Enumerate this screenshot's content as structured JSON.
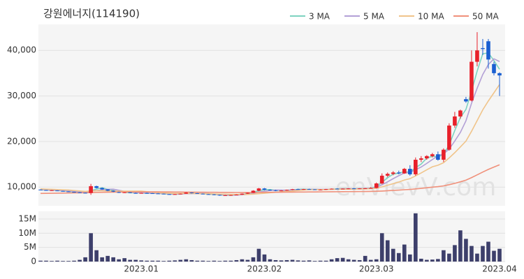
{
  "chart_data": {
    "type": "candlestick",
    "title": "강원에너지(114190)",
    "watermark": "enVievV.com",
    "legend": "top-right",
    "grid": true,
    "up_color": "#e8202a",
    "down_color": "#1a5fd1",
    "categories": [
      null,
      null,
      null,
      null,
      null,
      null,
      null,
      null,
      null,
      null,
      null,
      null,
      null,
      null,
      null,
      null,
      null,
      null,
      "2023.01",
      null,
      null,
      null,
      null,
      null,
      null,
      null,
      null,
      null,
      null,
      null,
      null,
      null,
      null,
      null,
      null,
      null,
      null,
      null,
      null,
      null,
      "2023.02",
      null,
      null,
      null,
      null,
      null,
      null,
      null,
      null,
      null,
      null,
      null,
      null,
      null,
      null,
      null,
      null,
      null,
      null,
      null,
      "2023.03",
      null,
      null,
      null,
      null,
      null,
      null,
      null,
      null,
      null,
      null,
      null,
      null,
      null,
      null,
      null,
      null,
      null,
      null,
      null,
      null,
      null,
      "2023.04"
    ],
    "open": [
      9450,
      9350,
      9250,
      9250,
      9150,
      9050,
      8950,
      8850,
      8750,
      8700,
      10200,
      9800,
      9500,
      9200,
      8900,
      8750,
      8850,
      8700,
      8650,
      8700,
      8650,
      8600,
      8550,
      8450,
      8400,
      8450,
      8550,
      8800,
      8650,
      8550,
      8450,
      8400,
      8300,
      8150,
      8200,
      8250,
      8350,
      8550,
      8750,
      9200,
      9700,
      9400,
      9300,
      9200,
      9250,
      9400,
      9550,
      9500,
      9550,
      9500,
      9400,
      9450,
      9550,
      9650,
      9600,
      9650,
      9700,
      9650,
      9700,
      9750,
      9800,
      10800,
      12500,
      12900,
      13200,
      13000,
      14000,
      12800,
      16000,
      16300,
      16800,
      17200,
      16000,
      18200,
      23500,
      25500,
      29300,
      29000,
      37500,
      40500,
      42000,
      37000,
      35000
    ],
    "high": [
      9500,
      9400,
      9350,
      9300,
      9200,
      9100,
      9000,
      8900,
      8800,
      10700,
      10300,
      9900,
      9550,
      9300,
      9000,
      8900,
      8900,
      8800,
      8750,
      8800,
      8700,
      8700,
      8600,
      8500,
      8500,
      8600,
      8900,
      8850,
      8700,
      8600,
      8500,
      8450,
      8350,
      8250,
      8300,
      8400,
      8600,
      8800,
      9300,
      9800,
      9800,
      9500,
      9400,
      9300,
      9450,
      9600,
      9650,
      9600,
      9650,
      9550,
      9500,
      9600,
      9700,
      9750,
      9700,
      9750,
      9800,
      9750,
      9800,
      10000,
      11000,
      13000,
      13200,
      13500,
      13600,
      14200,
      14800,
      16500,
      16800,
      17000,
      17500,
      17800,
      18500,
      24000,
      26500,
      27000,
      29800,
      40000,
      44000,
      42500,
      42500,
      37500,
      35200
    ],
    "low": [
      9300,
      9200,
      9150,
      9100,
      9000,
      8900,
      8800,
      8700,
      8650,
      8300,
      9700,
      9400,
      9100,
      8900,
      8700,
      8700,
      8650,
      8600,
      8600,
      8600,
      8550,
      8500,
      8400,
      8350,
      8350,
      8400,
      8500,
      8600,
      8500,
      8400,
      8350,
      8200,
      8100,
      8050,
      8100,
      8200,
      8300,
      8500,
      8700,
      9100,
      9300,
      9200,
      9100,
      9100,
      9200,
      9350,
      9450,
      9400,
      9450,
      9350,
      9300,
      9400,
      9500,
      9550,
      9500,
      9550,
      9600,
      9550,
      9600,
      9650,
      9700,
      10600,
      12200,
      12600,
      12800,
      12900,
      12500,
      12500,
      15500,
      16000,
      16500,
      15800,
      15500,
      18000,
      23000,
      25000,
      28500,
      28800,
      36500,
      39000,
      36000,
      34500,
      30000
    ],
    "close": [
      9350,
      9250,
      9300,
      9150,
      9050,
      8950,
      8850,
      8750,
      8700,
      10200,
      9800,
      9500,
      9200,
      9000,
      8750,
      8850,
      8700,
      8650,
      8700,
      8650,
      8600,
      8550,
      8450,
      8400,
      8450,
      8550,
      8800,
      8650,
      8550,
      8450,
      8400,
      8300,
      8150,
      8200,
      8250,
      8350,
      8550,
      8750,
      9200,
      9700,
      9400,
      9300,
      9200,
      9250,
      9400,
      9550,
      9500,
      9550,
      9500,
      9400,
      9450,
      9550,
      9650,
      9600,
      9650,
      9700,
      9650,
      9700,
      9750,
      9800,
      10800,
      12500,
      12900,
      13200,
      13000,
      14000,
      12800,
      16000,
      16300,
      16800,
      17200,
      16000,
      18200,
      23500,
      25500,
      26800,
      28800,
      37500,
      40000,
      40300,
      38000,
      35000,
      34500
    ],
    "series": [
      {
        "name": "3 MA",
        "color": "#7dd3c0",
        "values": [
          9400,
          9350,
          9300,
          9250,
          9150,
          9050,
          8950,
          8850,
          8750,
          9200,
          9550,
          9850,
          9500,
          9250,
          9000,
          8850,
          8750,
          8750,
          8700,
          8650,
          8650,
          8600,
          8550,
          8450,
          8450,
          8450,
          8600,
          8650,
          8650,
          8550,
          8450,
          8400,
          8300,
          8200,
          8200,
          8250,
          8400,
          8550,
          8850,
          9200,
          9450,
          9450,
          9300,
          9250,
          9300,
          9400,
          9500,
          9550,
          9500,
          9500,
          9450,
          9450,
          9550,
          9600,
          9650,
          9650,
          9650,
          9700,
          9700,
          9750,
          10100,
          11050,
          12050,
          12850,
          13050,
          13400,
          13250,
          14250,
          15050,
          16350,
          16750,
          16650,
          17150,
          19250,
          22400,
          25250,
          27050,
          31050,
          35450,
          39250,
          39450,
          37750,
          35850
        ]
      },
      {
        "name": "5 MA",
        "color": "#b3a0d6",
        "values": [
          9450,
          9400,
          9350,
          9300,
          9200,
          9150,
          9050,
          8950,
          8850,
          9100,
          9250,
          9400,
          9500,
          9550,
          9300,
          9050,
          8900,
          8800,
          8750,
          8700,
          8650,
          8650,
          8600,
          8550,
          8500,
          8500,
          8550,
          8550,
          8600,
          8600,
          8550,
          8450,
          8350,
          8300,
          8250,
          8250,
          8300,
          8400,
          8600,
          8900,
          9100,
          9250,
          9350,
          9350,
          9300,
          9350,
          9400,
          9450,
          9500,
          9500,
          9500,
          9500,
          9500,
          9550,
          9600,
          9650,
          9650,
          9650,
          9700,
          9700,
          9950,
          10500,
          11150,
          11850,
          12500,
          13100,
          13200,
          13800,
          14400,
          15200,
          16050,
          16850,
          17300,
          18350,
          20100,
          22000,
          24550,
          28400,
          31700,
          34700,
          36900,
          38150,
          37550
        ]
      },
      {
        "name": "10 MA",
        "color": "#f0c48a",
        "values": [
          9600,
          9550,
          9500,
          9450,
          9400,
          9350,
          9250,
          9150,
          9050,
          9150,
          9200,
          9200,
          9150,
          9150,
          9100,
          9100,
          9100,
          9100,
          9100,
          9000,
          8850,
          8750,
          8700,
          8650,
          8600,
          8600,
          8600,
          8600,
          8550,
          8550,
          8550,
          8500,
          8450,
          8450,
          8400,
          8400,
          8400,
          8400,
          8450,
          8550,
          8650,
          8750,
          8850,
          8950,
          9050,
          9150,
          9250,
          9350,
          9450,
          9450,
          9450,
          9450,
          9500,
          9550,
          9550,
          9550,
          9550,
          9600,
          9600,
          9650,
          9750,
          10050,
          10400,
          10750,
          11100,
          11550,
          11850,
          12450,
          13100,
          13800,
          14450,
          14800,
          15350,
          16400,
          17550,
          18800,
          20100,
          22250,
          24600,
          26950,
          28900,
          30700,
          32500
        ]
      },
      {
        "name": "50 MA",
        "color": "#f0907a",
        "values": [
          8600,
          8620,
          8640,
          8660,
          8680,
          8700,
          8720,
          8740,
          8760,
          8800,
          8830,
          8860,
          8880,
          8900,
          8910,
          8920,
          8930,
          8940,
          8950,
          8950,
          8950,
          8950,
          8940,
          8930,
          8920,
          8910,
          8900,
          8890,
          8880,
          8870,
          8860,
          8850,
          8840,
          8830,
          8820,
          8810,
          8800,
          8800,
          8810,
          8830,
          8850,
          8860,
          8870,
          8880,
          8890,
          8900,
          8910,
          8920,
          8930,
          8940,
          8950,
          8960,
          8970,
          8980,
          8990,
          9000,
          9010,
          9020,
          9030,
          9050,
          9080,
          9130,
          9200,
          9270,
          9340,
          9420,
          9480,
          9600,
          9720,
          9850,
          9990,
          10100,
          10260,
          10520,
          10820,
          11150,
          11520,
          12080,
          12680,
          13300,
          13880,
          14400,
          14900
        ]
      }
    ],
    "ylim": [
      5900,
      45700
    ],
    "yticks": [
      {
        "value": 10000,
        "label": "10,000"
      },
      {
        "value": 20000,
        "label": "20,000"
      },
      {
        "value": 30000,
        "label": "30,000"
      },
      {
        "value": 40000,
        "label": "40,000"
      }
    ],
    "volume": {
      "color": "#3d3f6b",
      "ylim": [
        0,
        17700000
      ],
      "yticks": [
        0,
        {
          "value": 5000000,
          "label": "5M"
        },
        {
          "value": 10000000,
          "label": "10M"
        },
        {
          "value": 15000000,
          "label": "15M"
        }
      ],
      "values": [
        300000,
        300000,
        200000,
        300000,
        200000,
        200000,
        300000,
        600000,
        1500000,
        10000000,
        4000000,
        1500000,
        2000000,
        1500000,
        800000,
        1200000,
        600000,
        600000,
        400000,
        300000,
        300000,
        300000,
        200000,
        300000,
        400000,
        600000,
        800000,
        500000,
        300000,
        300000,
        200000,
        300000,
        200000,
        300000,
        300000,
        500000,
        800000,
        600000,
        1500000,
        4500000,
        2500000,
        800000,
        500000,
        400000,
        500000,
        600000,
        400000,
        300000,
        400000,
        200000,
        300000,
        300000,
        800000,
        1200000,
        1300000,
        800000,
        600000,
        500000,
        2000000,
        600000,
        800000,
        10000000,
        7500000,
        4500000,
        3000000,
        6000000,
        2500000,
        17000000,
        1000000,
        600000,
        700000,
        900000,
        4000000,
        2800000,
        5800000,
        11000000,
        8000000,
        5500000,
        2800000,
        5500000,
        7000000,
        3800000,
        4500000
      ]
    }
  }
}
